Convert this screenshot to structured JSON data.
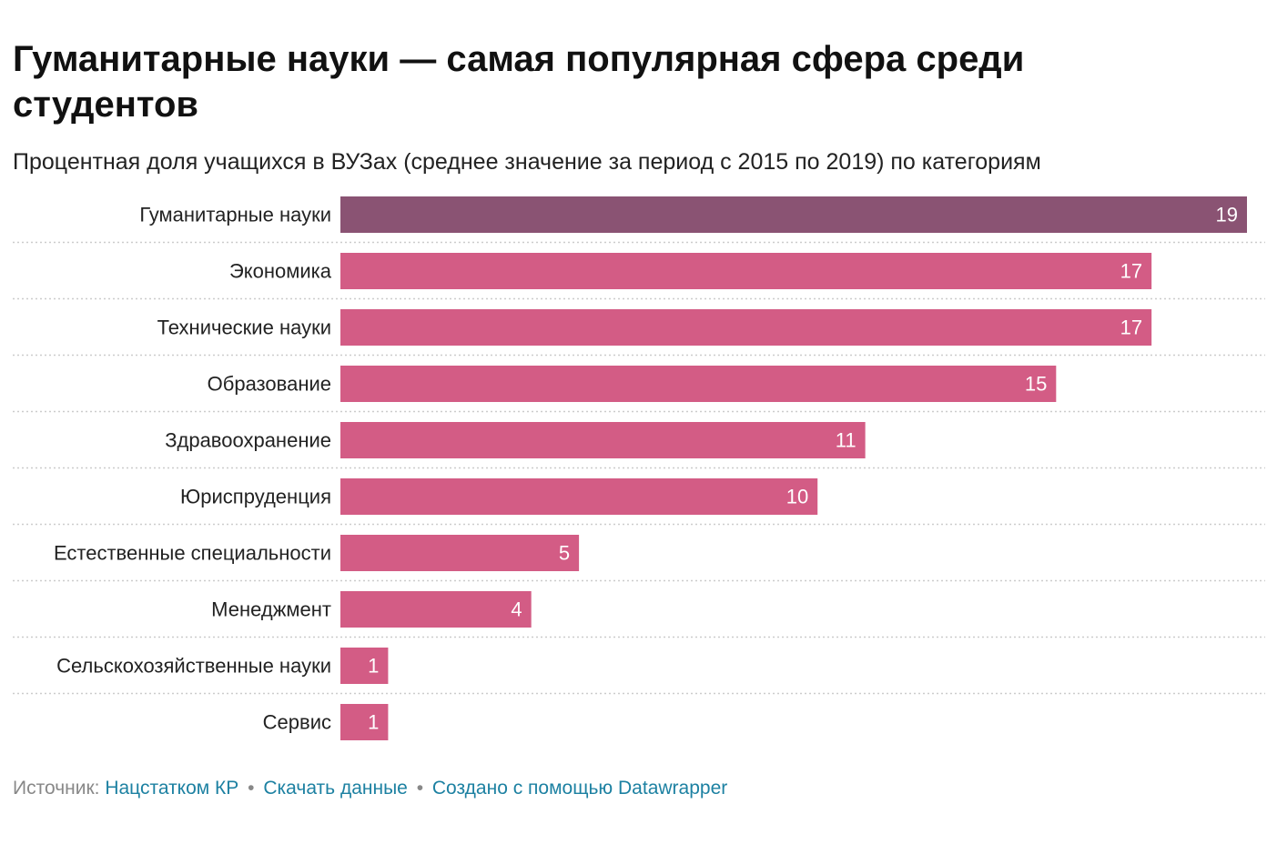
{
  "header": {
    "title": "Гуманитарные науки — самая популярная сфера среди студентов",
    "subtitle": "Процентная доля учащихся в ВУЗах (среднее значение за период с 2015 по 2019) по категориям"
  },
  "chart_data": {
    "type": "bar",
    "orientation": "horizontal",
    "categories": [
      "Гуманитарные науки",
      "Экономика",
      "Технические науки",
      "Образование",
      "Здравоохранение",
      "Юриспруденция",
      "Естественные специальности",
      "Менеджмент",
      "Сельскохозяйственные науки",
      "Сервис"
    ],
    "values": [
      19,
      17,
      17,
      15,
      11,
      10,
      5,
      4,
      1,
      1
    ],
    "xlim": [
      0,
      19
    ],
    "highlight_index": 0,
    "colors": {
      "highlight": "#8a5373",
      "bar": "#d35c85",
      "value_label": "#ffffff",
      "separator": "#cccccc"
    },
    "grid": false,
    "data_labels": "inside-end"
  },
  "footer": {
    "source_label": "Источник:",
    "source_link": "Нацстатком КР",
    "download_link": "Скачать данные",
    "separator": "•",
    "created_with": "Создано с помощью Datawrapper",
    "link_color": "#1d81a2"
  }
}
